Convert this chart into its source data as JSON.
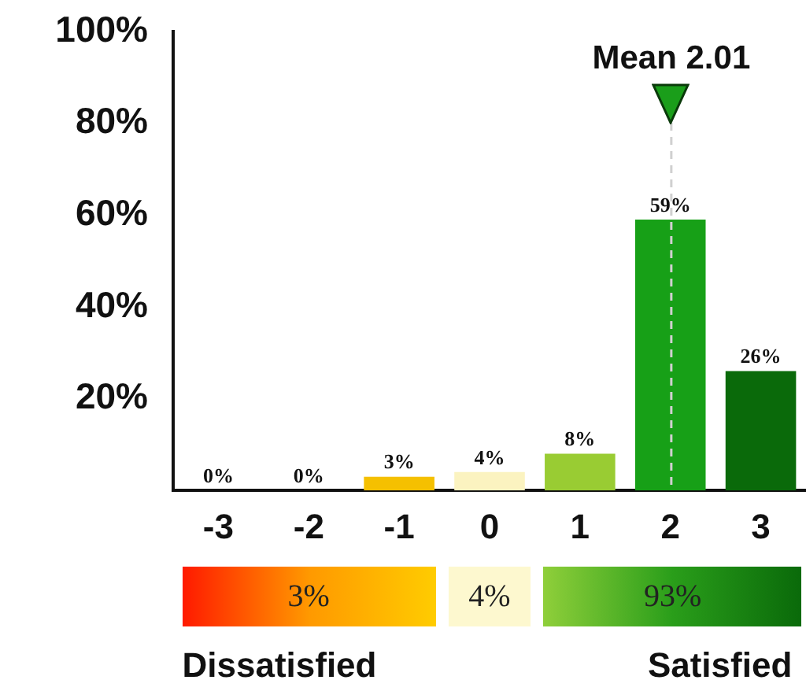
{
  "chart_data": {
    "type": "bar",
    "x": [
      -3,
      -2,
      -1,
      0,
      1,
      2,
      3
    ],
    "values": [
      0,
      0,
      3,
      4,
      8,
      59,
      26
    ],
    "colors": [
      "#ff2a00",
      "#ff8c00",
      "#f5c000",
      "#fbf3c0",
      "#99cc33",
      "#17a017",
      "#0a6a0a"
    ],
    "xlim": [
      -3.5,
      3.5
    ],
    "xticks": [
      -3,
      -2,
      -1,
      0,
      1,
      2,
      3
    ],
    "ylim": [
      0,
      100
    ],
    "yticks": [
      {
        "value": 0,
        "label": null
      },
      {
        "value": 20,
        "label": "20%"
      },
      {
        "value": 40,
        "label": "40%"
      },
      {
        "value": 60,
        "label": "60%"
      },
      {
        "value": 80,
        "label": "80%"
      },
      {
        "value": 100,
        "label": "100%"
      }
    ],
    "value_labels": [
      "0%",
      "0%",
      "3%",
      "4%",
      "8%",
      "59%",
      "26%"
    ],
    "grid": false,
    "ref_lines": [
      {
        "axis": "x",
        "value": 2.01,
        "label": "Mean 2.01",
        "color": "#d0d0d0",
        "line_style": "dashed"
      }
    ],
    "annotations": [
      "3%",
      "4%",
      "93%",
      "Dissatisfied",
      "Satisfied"
    ]
  }
}
